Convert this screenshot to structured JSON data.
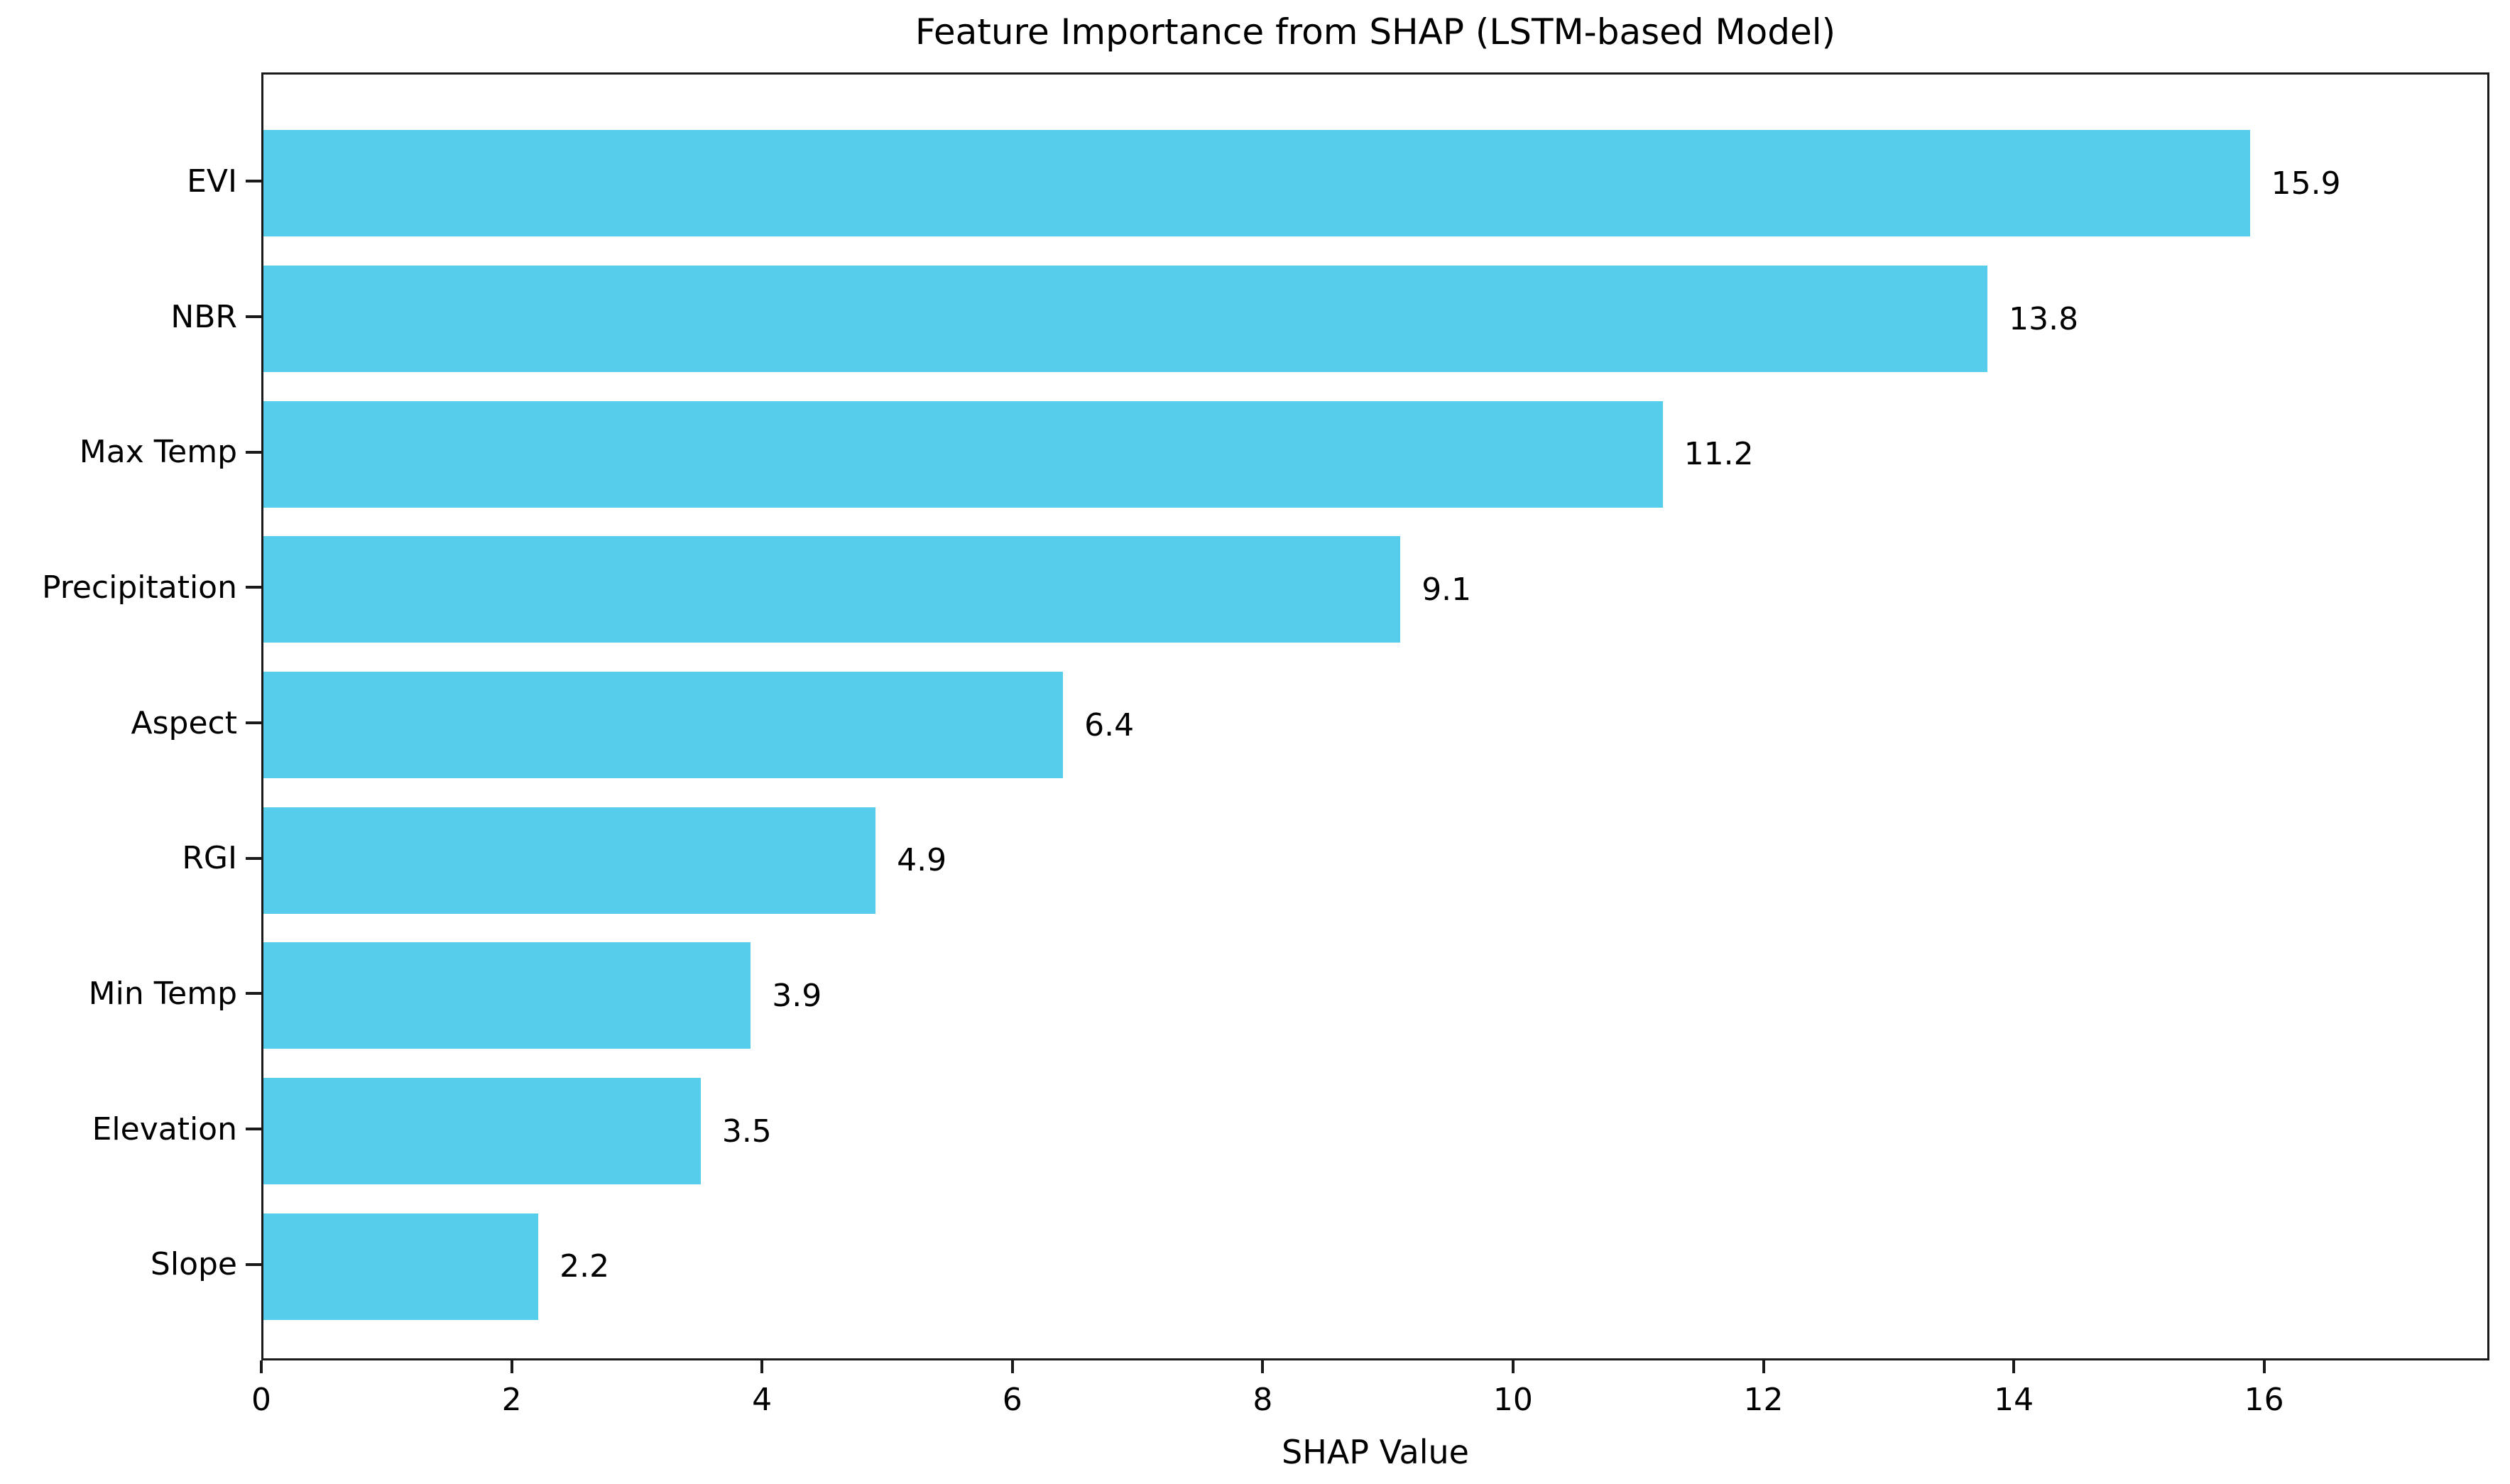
{
  "chart_data": {
    "type": "bar",
    "orientation": "horizontal",
    "title": "Feature Importance from SHAP (LSTM-based Model)",
    "xlabel": "SHAP Value",
    "ylabel": "",
    "categories": [
      "EVI",
      "NBR",
      "Max Temp",
      "Precipitation",
      "Aspect",
      "RGI",
      "Min Temp",
      "Elevation",
      "Slope"
    ],
    "values": [
      15.9,
      13.8,
      11.2,
      9.1,
      6.4,
      4.9,
      3.9,
      3.5,
      2.2
    ],
    "value_labels": [
      "15.9",
      "13.8",
      "11.2",
      "9.1",
      "6.4",
      "4.9",
      "3.9",
      "3.5",
      "2.2"
    ],
    "xticks": [
      0,
      2,
      4,
      6,
      8,
      10,
      12,
      14,
      16
    ],
    "xtick_labels": [
      "0",
      "2",
      "4",
      "6",
      "8",
      "10",
      "12",
      "14",
      "16"
    ],
    "xlim": [
      0,
      17.8
    ],
    "grid": false,
    "legend": null,
    "colors": {
      "bar_fill": "#55CDEB",
      "text": "#000000",
      "spine": "#1a1a1a",
      "background": "#ffffff"
    }
  }
}
